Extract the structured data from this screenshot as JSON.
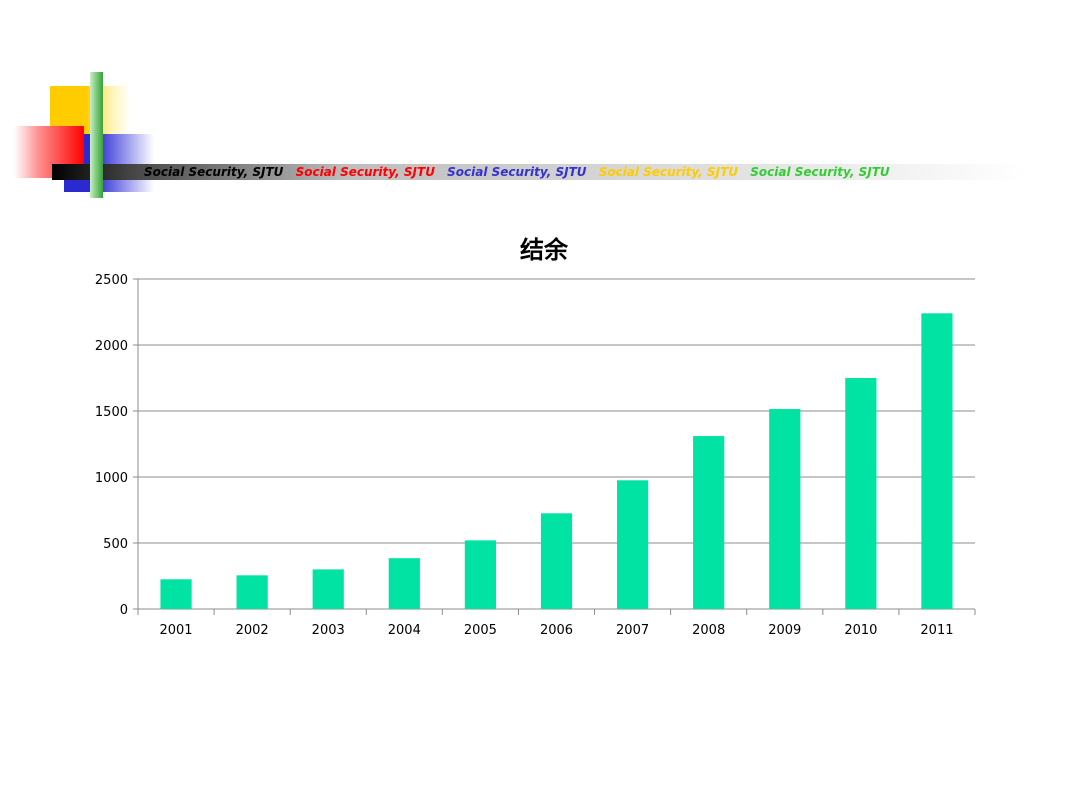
{
  "header": {
    "taglines": [
      {
        "text": "Social Security,  SJTU",
        "color": "#000000"
      },
      {
        "text": "Social Security,  SJTU",
        "color": "#ff0000"
      },
      {
        "text": "Social Security,  SJTU",
        "color": "#3333cc"
      },
      {
        "text": "Social Security,  SJTU",
        "color": "#ffcc00"
      },
      {
        "text": "Social Security,  SJTU",
        "color": "#33cc33"
      }
    ]
  },
  "chart_data": {
    "type": "bar",
    "title": "结余",
    "xlabel": "",
    "ylabel": "",
    "categories": [
      "2001",
      "2002",
      "2003",
      "2004",
      "2005",
      "2006",
      "2007",
      "2008",
      "2009",
      "2010",
      "2011"
    ],
    "values": [
      225,
      255,
      300,
      385,
      520,
      725,
      975,
      1310,
      1515,
      1750,
      2240
    ],
    "ylim": [
      0,
      2500
    ],
    "yticks": [
      "0",
      "500",
      "1000",
      "1500",
      "2000",
      "2500"
    ],
    "grid": true,
    "legend": "none",
    "bar_color": "#00e3a3"
  }
}
